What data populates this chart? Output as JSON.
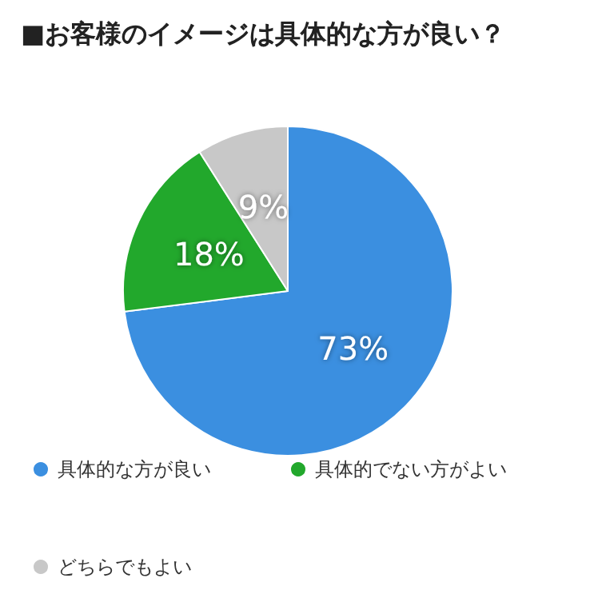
{
  "chart_data": {
    "type": "pie",
    "title": "■お客様のイメージは具体的な方が良い？",
    "categories": [
      "具体的な方が良い",
      "具体的でない方がよい",
      "どちらでもよい"
    ],
    "values": [
      73,
      18,
      9
    ],
    "colors": [
      "#3b8fe0",
      "#22a82c",
      "#c8c8c8"
    ],
    "value_labels": [
      "73%",
      "18%",
      "9%"
    ],
    "legend": "bottom"
  }
}
